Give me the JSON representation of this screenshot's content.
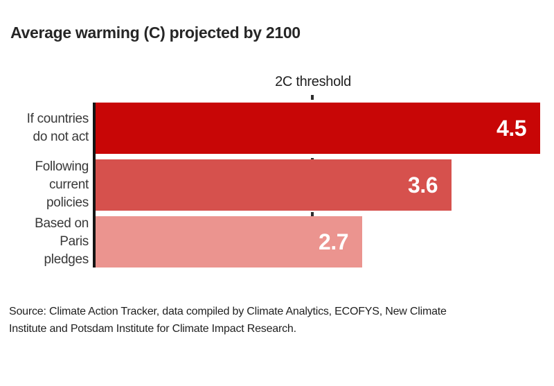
{
  "page": {
    "title": "Average warming (C) projected by 2100"
  },
  "chart_data": {
    "type": "bar",
    "orientation": "horizontal",
    "title": "Average warming (C) projected by 2100",
    "categories": [
      "If countries do not act",
      "Following current policies",
      "Based on Paris pledges"
    ],
    "values": [
      4.5,
      3.6,
      2.7
    ],
    "xlim": [
      0,
      4.5
    ],
    "grid": false,
    "legend": false,
    "value_labels": "inside-bar-right",
    "threshold": {
      "value": 2,
      "label": "2C threshold"
    },
    "bars": [
      {
        "label_lines": [
          "If countries",
          "do not act"
        ],
        "value": 4.5,
        "value_label": "4.5",
        "color": "#c80606"
      },
      {
        "label_lines": [
          "Following",
          "current",
          "policies"
        ],
        "value": 3.6,
        "value_label": "3.6",
        "color": "#d6514d"
      },
      {
        "label_lines": [
          "Based on",
          "Paris",
          "pledges"
        ],
        "value": 2.7,
        "value_label": "2.7",
        "color": "#eb948f"
      }
    ],
    "colors": {
      "axis": "#141414",
      "threshold_line": "#2e2e2e",
      "value_text": "#ffffff",
      "title_text": "#262626",
      "label_text": "#383838"
    }
  },
  "source": {
    "lines": [
      "Source: Climate Action Tracker, data compiled by Climate Analytics, ECOFYS, New Climate",
      "Institute and Potsdam Institute for Climate Impact Research."
    ]
  }
}
